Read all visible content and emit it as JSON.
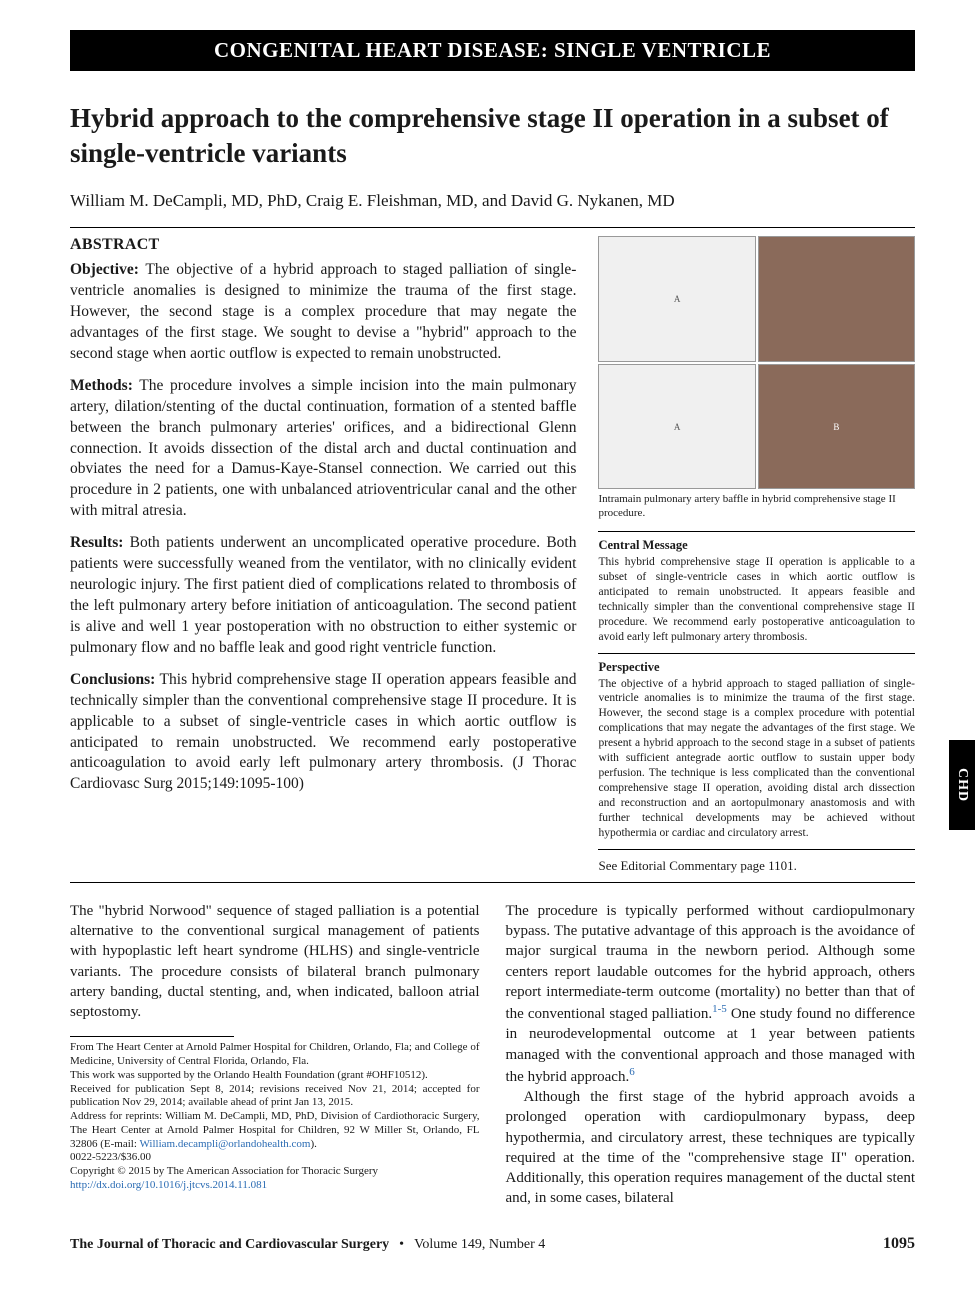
{
  "header_bar": "CONGENITAL HEART DISEASE: SINGLE VENTRICLE",
  "title": "Hybrid approach to the comprehensive stage II operation in a subset of single-ventricle variants",
  "authors": "William M. DeCampli, MD, PhD, Craig E. Fleishman, MD, and David G. Nykanen, MD",
  "abstract_label": "ABSTRACT",
  "abstract": {
    "objective_label": "Objective:",
    "objective_text": " The objective of a hybrid approach to staged palliation of single-ventricle anomalies is designed to minimize the trauma of the first stage. However, the second stage is a complex procedure that may negate the advantages of the first stage. We sought to devise a \"hybrid\" approach to the second stage when aortic outflow is expected to remain unobstructed.",
    "methods_label": "Methods:",
    "methods_text": " The procedure involves a simple incision into the main pulmonary artery, dilation/stenting of the ductal continuation, formation of a stented baffle between the branch pulmonary arteries' orifices, and a bidirectional Glenn connection. It avoids dissection of the distal arch and ductal continuation and obviates the need for a Damus-Kaye-Stansel connection. We carried out this procedure in 2 patients, one with unbalanced atrioventricular canal and the other with mitral atresia.",
    "results_label": "Results:",
    "results_text": " Both patients underwent an uncomplicated operative procedure. Both patients were successfully weaned from the ventilator, with no clinically evident neurologic injury. The first patient died of complications related to thrombosis of the left pulmonary artery before initiation of anticoagulation. The second patient is alive and well 1 year postoperation with no obstruction to either systemic or pulmonary flow and no baffle leak and good right ventricle function.",
    "conclusions_label": "Conclusions:",
    "conclusions_text": " This hybrid comprehensive stage II operation appears feasible and technically simpler than the conventional comprehensive stage II procedure. It is applicable to a subset of single-ventricle cases in which aortic outflow is anticipated to remain unobstructed. We recommend early postoperative anticoagulation to avoid early left pulmonary artery thrombosis. (J Thorac Cardiovasc Surg 2015;149:1095-100)"
  },
  "figure_caption": "Intramain pulmonary artery baffle in hybrid comprehensive stage II procedure.",
  "central_message_heading": "Central Message",
  "central_message_text": "This hybrid comprehensive stage II operation is applicable to a subset of single-ventricle cases in which aortic outflow is anticipated to remain unobstructed. It appears feasible and technically simpler than the conventional comprehensive stage II procedure. We recommend early postoperative anticoagulation to avoid early left pulmonary artery thrombosis.",
  "perspective_heading": "Perspective",
  "perspective_text": "The objective of a hybrid approach to staged palliation of single-ventricle anomalies is to minimize the trauma of the first stage. However, the second stage is a complex procedure with potential complications that may negate the advantages of the first stage. We present a hybrid approach to the second stage in a subset of patients with sufficient antegrade aortic outflow to sustain upper body perfusion. The technique is less complicated than the conventional comprehensive stage II operation, avoiding distal arch dissection and reconstruction and an aortopulmonary anastomosis and with further technical developments may be achieved without hypothermia or cardiac and circulatory arrest.",
  "editorial_note": "See Editorial Commentary page 1101.",
  "body": {
    "left_p1": "The \"hybrid Norwood\" sequence of staged palliation is a potential alternative to the conventional surgical management of patients with hypoplastic left heart syndrome (HLHS) and single-ventricle variants. The procedure consists of bilateral branch pulmonary artery banding, ductal stenting, and, when indicated, balloon atrial septostomy.",
    "right_p1a": "The procedure is typically performed without cardiopulmonary bypass. The putative advantage of this approach is the avoidance of major surgical trauma in the newborn period. Although some centers report laudable outcomes for the hybrid approach, others report intermediate-term outcome (mortality) no better than that of the conventional staged palliation.",
    "right_sup1": "1-5",
    "right_p1b": " One study found no difference in neurodevelopmental outcome at 1 year between patients managed with the conventional approach and those managed with the hybrid approach.",
    "right_sup2": "6",
    "right_p2": "Although the first stage of the hybrid approach avoids a prolonged operation with cardiopulmonary bypass, deep hypothermia, and circulatory arrest, these techniques are typically required at the time of the \"comprehensive stage II\" operation. Additionally, this operation requires management of the ductal stent and, in some cases, bilateral"
  },
  "footnotes": {
    "from": "From The Heart Center at Arnold Palmer Hospital for Children, Orlando, Fla; and College of Medicine, University of Central Florida, Orlando, Fla.",
    "support": "This work was supported by the Orlando Health Foundation (grant #OHF10512).",
    "received": "Received for publication Sept 8, 2014; revisions received Nov 21, 2014; accepted for publication Nov 29, 2014; available ahead of print Jan 13, 2015.",
    "address": "Address for reprints: William M. DeCampli, MD, PhD, Division of Cardiothoracic Surgery, The Heart Center at Arnold Palmer Hospital for Children, 92 W Miller St, Orlando, FL 32806 (E-mail: ",
    "email": "William.decampli@orlandohealth.com",
    "address_end": ").",
    "issn": "0022-5223/$36.00",
    "copyright": "Copyright © 2015 by The American Association for Thoracic Surgery",
    "doi": "http://dx.doi.org/10.1016/j.jtcvs.2014.11.081"
  },
  "footer": {
    "journal": "The Journal of Thoracic and Cardiovascular Surgery",
    "issue": "Volume 149, Number 4",
    "page": "1095"
  },
  "side_tab": "CHD",
  "colors": {
    "header_bg": "#000000",
    "link": "#2a6bb3",
    "text": "#1a1a1a"
  }
}
